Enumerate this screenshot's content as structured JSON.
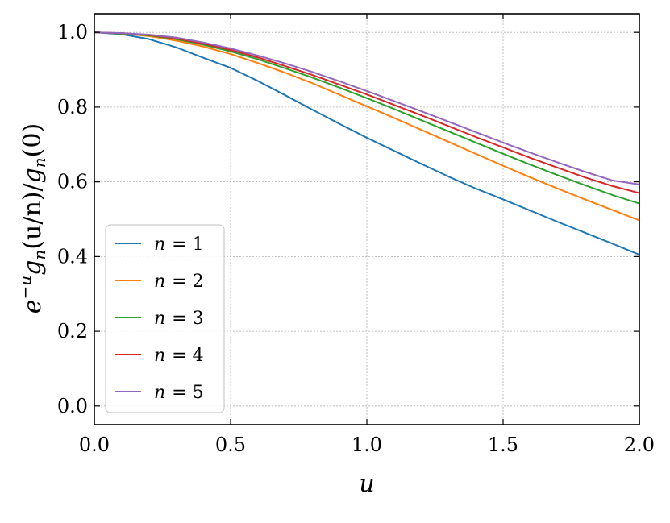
{
  "chart_data": {
    "type": "line",
    "title": "",
    "xlabel": "u",
    "ylabel": "e^{-u} g_n(u/n)/g_n(0)",
    "ylabel_parts": {
      "e": "e",
      "exp": "−u",
      "g1": "g",
      "sub1": "n",
      "arg": "(u/n)/",
      "g2": "g",
      "sub2": "n",
      "tail": "(0)"
    },
    "xlim": [
      0.0,
      2.0
    ],
    "ylim": [
      -0.05,
      1.05
    ],
    "xticks": [
      0.0,
      0.5,
      1.0,
      1.5,
      2.0
    ],
    "xtick_labels": [
      "0.0",
      "0.5",
      "1.0",
      "1.5",
      "2.0"
    ],
    "yticks": [
      0.0,
      0.2,
      0.4,
      0.6,
      0.8,
      1.0
    ],
    "ytick_labels": [
      "0.0",
      "0.2",
      "0.4",
      "0.6",
      "0.8",
      "1.0"
    ],
    "grid": true,
    "legend_position": "lower-left",
    "x": [
      0.0,
      0.1,
      0.2,
      0.3,
      0.4,
      0.5,
      0.6,
      0.7,
      0.8,
      0.9,
      1.0,
      1.1,
      1.2,
      1.3,
      1.4,
      1.5,
      1.6,
      1.7,
      1.8,
      1.9,
      2.0
    ],
    "series": [
      {
        "name": "n = 1",
        "name_var": "n",
        "name_eq": "= 1",
        "color": "#1f77b4",
        "values": [
          1.0,
          0.995,
          0.982,
          0.96,
          0.932,
          0.905,
          0.87,
          0.832,
          0.793,
          0.755,
          0.718,
          0.683,
          0.648,
          0.614,
          0.582,
          0.553,
          0.523,
          0.493,
          0.464,
          0.435,
          0.405
        ]
      },
      {
        "name": "n = 2",
        "name_var": "n",
        "name_eq": "= 2",
        "color": "#ff7f0e",
        "values": [
          1.0,
          0.997,
          0.99,
          0.978,
          0.962,
          0.942,
          0.918,
          0.892,
          0.864,
          0.833,
          0.802,
          0.771,
          0.739,
          0.707,
          0.675,
          0.643,
          0.612,
          0.582,
          0.553,
          0.525,
          0.497
        ]
      },
      {
        "name": "n = 3",
        "name_var": "n",
        "name_eq": "= 3",
        "color": "#2ca02c",
        "values": [
          1.0,
          0.997,
          0.992,
          0.982,
          0.967,
          0.949,
          0.928,
          0.904,
          0.879,
          0.852,
          0.824,
          0.795,
          0.765,
          0.735,
          0.705,
          0.675,
          0.646,
          0.618,
          0.591,
          0.565,
          0.542
        ]
      },
      {
        "name": "n = 4",
        "name_var": "n",
        "name_eq": "= 4",
        "color": "#d62728",
        "values": [
          1.0,
          0.998,
          0.993,
          0.984,
          0.97,
          0.953,
          0.933,
          0.91,
          0.886,
          0.86,
          0.834,
          0.806,
          0.778,
          0.749,
          0.72,
          0.692,
          0.664,
          0.638,
          0.612,
          0.589,
          0.57
        ]
      },
      {
        "name": "n = 5",
        "name_var": "n",
        "name_eq": "= 5",
        "color": "#9467bd",
        "values": [
          1.0,
          0.998,
          0.994,
          0.986,
          0.973,
          0.957,
          0.938,
          0.917,
          0.894,
          0.869,
          0.843,
          0.816,
          0.789,
          0.761,
          0.733,
          0.705,
          0.678,
          0.652,
          0.627,
          0.604,
          0.593
        ]
      }
    ]
  }
}
